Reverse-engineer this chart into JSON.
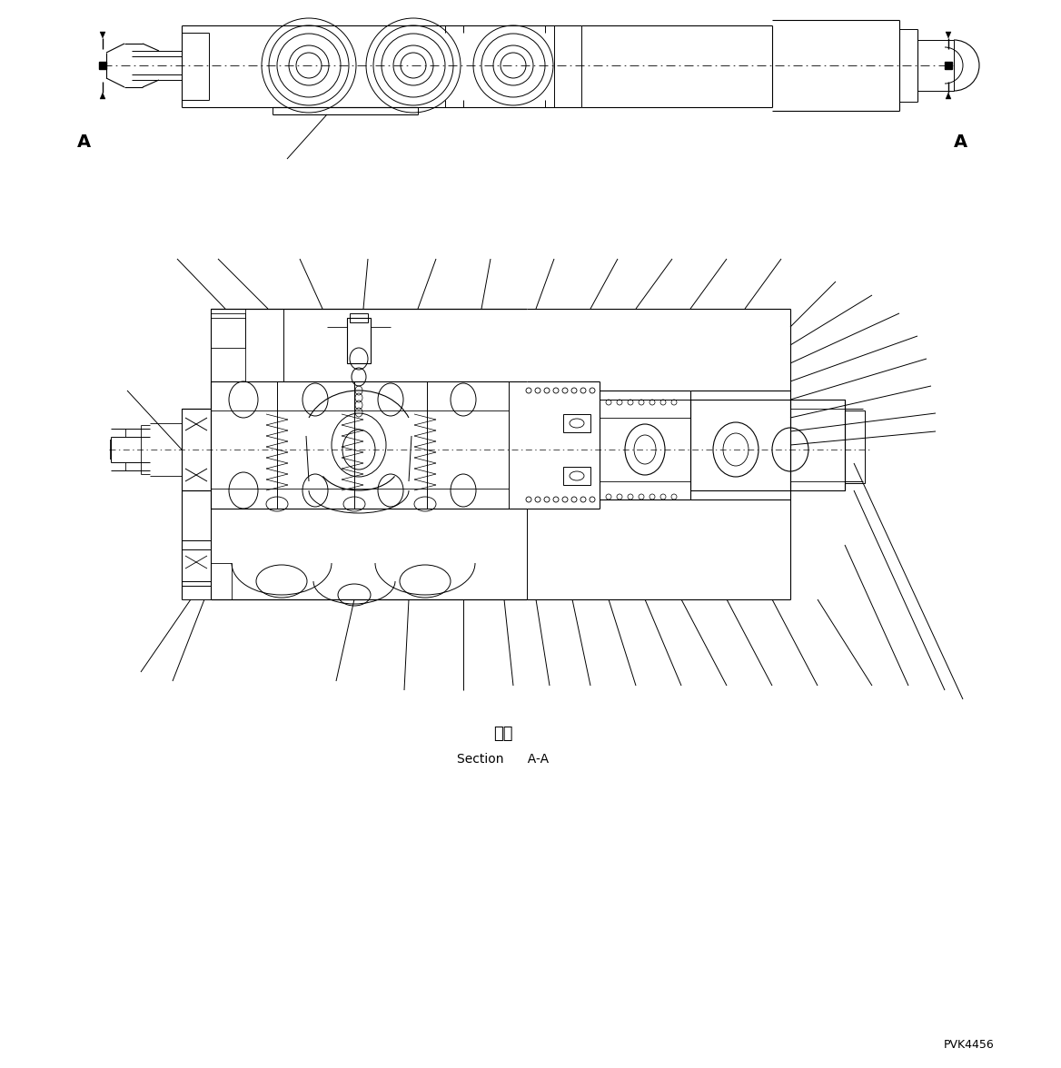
{
  "background_color": "#ffffff",
  "line_color": "#000000",
  "section_label_chinese": "断面",
  "section_label_english": "Section      A-A",
  "watermark": "PVK4456",
  "fig_width": 11.68,
  "fig_height": 11.76,
  "dpi": 100
}
